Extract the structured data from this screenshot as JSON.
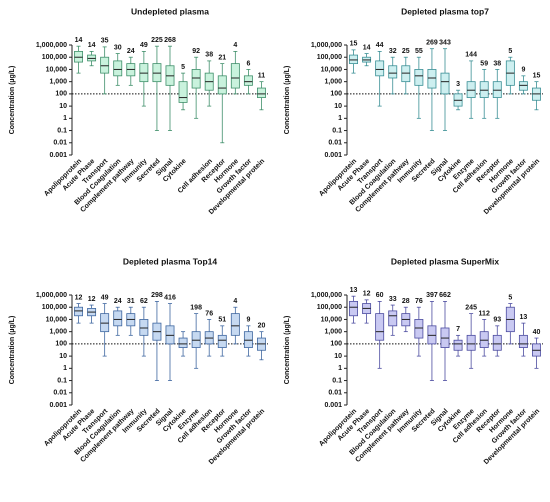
{
  "chart_data": [
    {
      "type": "box",
      "title": "Undepleted plasma",
      "ylabel": "Concentration (µg/L)",
      "log": true,
      "color": "#c9f2dd",
      "edge": "#3f8f6a",
      "categories": [
        "Apolipoprotein",
        "Acute Phase",
        "Transport",
        "Blood Coagulation",
        "Complement pathway",
        "Immunity",
        "Secreted",
        "Signal",
        "Cytokine",
        null,
        "Cell adhesion",
        "Receptor",
        "Hormone",
        "Growth factor",
        "Developmental protein"
      ],
      "n": [
        14,
        14,
        35,
        30,
        24,
        49,
        225,
        268,
        5,
        92,
        38,
        21,
        4,
        6,
        11
      ],
      "boxes": [
        [
          5000,
          40000,
          100000,
          300000,
          800000
        ],
        [
          20000,
          50000,
          80000,
          150000,
          300000
        ],
        [
          100,
          5000,
          20000,
          100000,
          700000
        ],
        [
          500,
          3000,
          10000,
          50000,
          200000
        ],
        [
          500,
          3000,
          10000,
          30000,
          100000
        ],
        [
          10,
          1000,
          5000,
          30000,
          300000
        ],
        [
          0.1,
          1000,
          5000,
          30000,
          800000
        ],
        [
          0.1,
          500,
          3000,
          20000,
          800000
        ],
        [
          5,
          20,
          50,
          1000,
          5000
        ],
        [
          1,
          300,
          2000,
          10000,
          100000
        ],
        [
          10,
          200,
          1000,
          5000,
          50000
        ],
        [
          0.01,
          100,
          300,
          3000,
          30000
        ],
        [
          100,
          300,
          2000,
          30000,
          300000
        ],
        [
          100,
          500,
          1000,
          3000,
          10000
        ],
        [
          5,
          50,
          100,
          300,
          1000
        ]
      ],
      "ylim": [
        0.001,
        1000000
      ],
      "refline": 100,
      "yticks": [
        {
          "value": 1000000,
          "label": "1,000,000"
        },
        {
          "value": 100000,
          "label": "100,000"
        },
        {
          "value": 10000,
          "label": "10,000"
        },
        {
          "value": 1000,
          "label": "1,000"
        },
        100,
        10,
        1,
        0.1,
        0.01,
        0.001
      ]
    },
    {
      "type": "box",
      "title": "Depleted plasma top7",
      "ylabel": "Concentration (µg/L)",
      "log": true,
      "color": "#cdeff0",
      "edge": "#3a8f95",
      "categories": [
        "Apolipoprotein",
        "Acute Phase",
        "Transport",
        "Blood Coagulation",
        "Complement pathway",
        "Immunity",
        "Secreted",
        "Signal",
        "Cytokine",
        "Enzyme",
        "Cell adhesion",
        "Receptor",
        "Hormone",
        "Growth factor",
        "Developmental protein"
      ],
      "n": [
        15,
        14,
        44,
        32,
        25,
        55,
        269,
        343,
        3,
        144,
        59,
        38,
        5,
        9,
        15
      ],
      "boxes": [
        [
          5000,
          30000,
          60000,
          150000,
          400000
        ],
        [
          20000,
          40000,
          60000,
          100000,
          200000
        ],
        [
          10,
          3000,
          10000,
          50000,
          300000
        ],
        [
          100,
          2000,
          5000,
          20000,
          100000
        ],
        [
          100,
          1000,
          5000,
          20000,
          100000
        ],
        [
          1,
          500,
          3000,
          10000,
          100000
        ],
        [
          0.1,
          300,
          2000,
          10000,
          500000
        ],
        [
          0.1,
          100,
          1000,
          5000,
          500000
        ],
        [
          5,
          10,
          30,
          100,
          200
        ],
        [
          1,
          50,
          200,
          1000,
          50000
        ],
        [
          1,
          50,
          200,
          1000,
          10000
        ],
        [
          1,
          50,
          200,
          1000,
          10000
        ],
        [
          100,
          500,
          5000,
          50000,
          100000
        ],
        [
          100,
          200,
          500,
          1000,
          3000
        ],
        [
          5,
          30,
          100,
          300,
          1000
        ]
      ],
      "ylim": [
        0.001,
        1000000
      ],
      "refline": 100,
      "yticks": [
        {
          "value": 1000000,
          "label": "1,000,000"
        },
        {
          "value": 100000,
          "label": "100,000"
        },
        {
          "value": 10000,
          "label": "10,000"
        },
        {
          "value": 1000,
          "label": "1,000"
        },
        100,
        10,
        1,
        0.1,
        0.01,
        0.001
      ]
    },
    {
      "type": "box",
      "title": "Depleted plasma Top14",
      "ylabel": "Concentration (µg/L)",
      "log": true,
      "color": "#c6d9f1",
      "edge": "#3f67a0",
      "categories": [
        "Apolipoprotein",
        "Acute Phase",
        "Transport",
        "Blood Coagulation",
        "Complement pathway",
        "Immunity",
        "Secreted",
        "Signal",
        "Cytokine",
        "Enzyme",
        "Cell adhesion",
        "Receptor",
        "Hormone",
        "Growth factor",
        "Developmental protein"
      ],
      "n": [
        12,
        12,
        49,
        24,
        31,
        62,
        298,
        416,
        null,
        198,
        76,
        51,
        4,
        9,
        20
      ],
      "boxes": [
        [
          5000,
          20000,
          50000,
          100000,
          200000
        ],
        [
          5000,
          20000,
          40000,
          80000,
          150000
        ],
        [
          10,
          1000,
          5000,
          30000,
          200000
        ],
        [
          500,
          3000,
          10000,
          50000,
          100000
        ],
        [
          500,
          3000,
          10000,
          30000,
          100000
        ],
        [
          10,
          500,
          2000,
          10000,
          100000
        ],
        [
          0.1,
          200,
          1000,
          5000,
          300000
        ],
        [
          0.1,
          100,
          500,
          3000,
          200000
        ],
        [
          10,
          50,
          100,
          300,
          1000
        ],
        [
          1,
          50,
          200,
          1000,
          30000
        ],
        [
          10,
          100,
          300,
          1000,
          10000
        ],
        [
          10,
          50,
          200,
          500,
          3000
        ],
        [
          100,
          500,
          3000,
          30000,
          100000
        ],
        [
          10,
          50,
          200,
          1000,
          3000
        ],
        [
          5,
          30,
          100,
          300,
          1000
        ]
      ],
      "ylim": [
        0.001,
        1000000
      ],
      "refline": 100,
      "yticks": [
        {
          "value": 1000000,
          "label": "1,000,000"
        },
        {
          "value": 100000,
          "label": "100,000"
        },
        {
          "value": 10000,
          "label": "10,000"
        },
        {
          "value": 1000,
          "label": "1,000"
        },
        100,
        10,
        1,
        0.1,
        0.01,
        0.001
      ]
    },
    {
      "type": "box",
      "title": "Depleted plasma SuperMix",
      "ylabel": "Concentration (µg/L)",
      "log": true,
      "color": "#c9c9f2",
      "edge": "#4c4ca0",
      "categories": [
        "Apolipoprotein",
        "Acute Phase",
        "Transport",
        "Blood Coagulation",
        "Complement pathway",
        "Immunity",
        "Secreted",
        "Signal",
        "Cytokine",
        "Enzyme",
        "Cell adhesion",
        "Receptor",
        "Hormone",
        "Growth factor",
        "Developmental protein"
      ],
      "n": [
        13,
        12,
        60,
        33,
        28,
        76,
        397,
        662,
        7,
        245,
        112,
        93,
        5,
        13,
        40
      ],
      "boxes": [
        [
          5000,
          20000,
          100000,
          300000,
          800000
        ],
        [
          5000,
          30000,
          80000,
          200000,
          400000
        ],
        [
          1,
          200,
          1000,
          30000,
          300000
        ],
        [
          500,
          3000,
          20000,
          50000,
          150000
        ],
        [
          1000,
          3000,
          10000,
          30000,
          100000
        ],
        [
          10,
          300,
          2000,
          10000,
          100000
        ],
        [
          0.1,
          100,
          500,
          3000,
          300000
        ],
        [
          0.1,
          50,
          300,
          2000,
          300000
        ],
        [
          10,
          30,
          100,
          200,
          500
        ],
        [
          1,
          30,
          100,
          500,
          30000
        ],
        [
          10,
          50,
          200,
          1000,
          10000
        ],
        [
          10,
          30,
          100,
          500,
          3000
        ],
        [
          100,
          1000,
          10000,
          100000,
          200000
        ],
        [
          10,
          50,
          100,
          500,
          5000
        ],
        [
          1,
          10,
          30,
          100,
          300
        ]
      ],
      "ylim": [
        0.001,
        1000000
      ],
      "refline": 100,
      "yticks": [
        {
          "value": 1000000,
          "label": "1,000,000"
        },
        {
          "value": 100000,
          "label": "100,000"
        },
        {
          "value": 10000,
          "label": "10,000"
        },
        {
          "value": 1000,
          "label": "1,000"
        },
        100,
        10,
        1,
        0.1,
        0.01,
        0.001
      ]
    }
  ]
}
